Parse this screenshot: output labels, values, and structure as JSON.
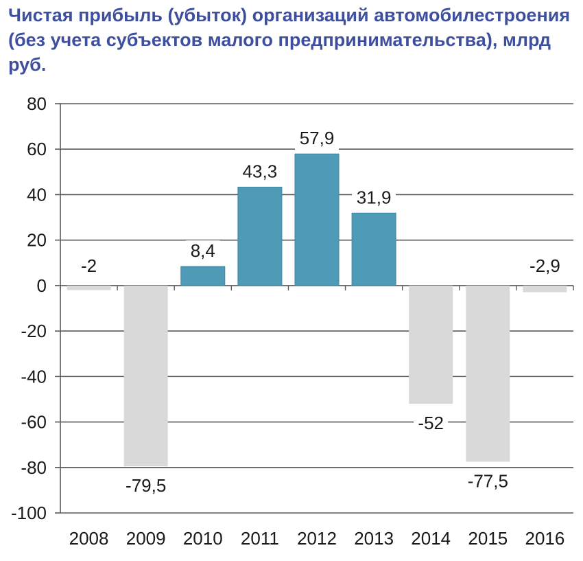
{
  "chart_data": {
    "type": "bar",
    "title": "Чистая прибыль (убыток) организаций автомобилестроения (без учета субъектов малого предпринимательства), млрд руб.",
    "xlabel": "",
    "ylabel": "",
    "categories": [
      "2008",
      "2009",
      "2010",
      "2011",
      "2012",
      "2013",
      "2014",
      "2015",
      "2016"
    ],
    "values": [
      -2,
      -79.5,
      8.4,
      43.3,
      57.9,
      31.9,
      -52,
      -77.5,
      -2.9
    ],
    "value_labels": [
      "-2",
      "-79,5",
      "8,4",
      "43,3",
      "57,9",
      "31,9",
      "-52",
      "-77,5",
      "-2,9"
    ],
    "ylim": [
      -100,
      80
    ],
    "yticks": [
      80,
      60,
      40,
      20,
      0,
      -20,
      -40,
      -60,
      -80,
      -100
    ],
    "grid": true,
    "legend": "none",
    "colors": {
      "positive": "#4e9ab7",
      "negative": "#d9d9d9",
      "title": "#3f4fa0",
      "grid": "#595959"
    }
  }
}
